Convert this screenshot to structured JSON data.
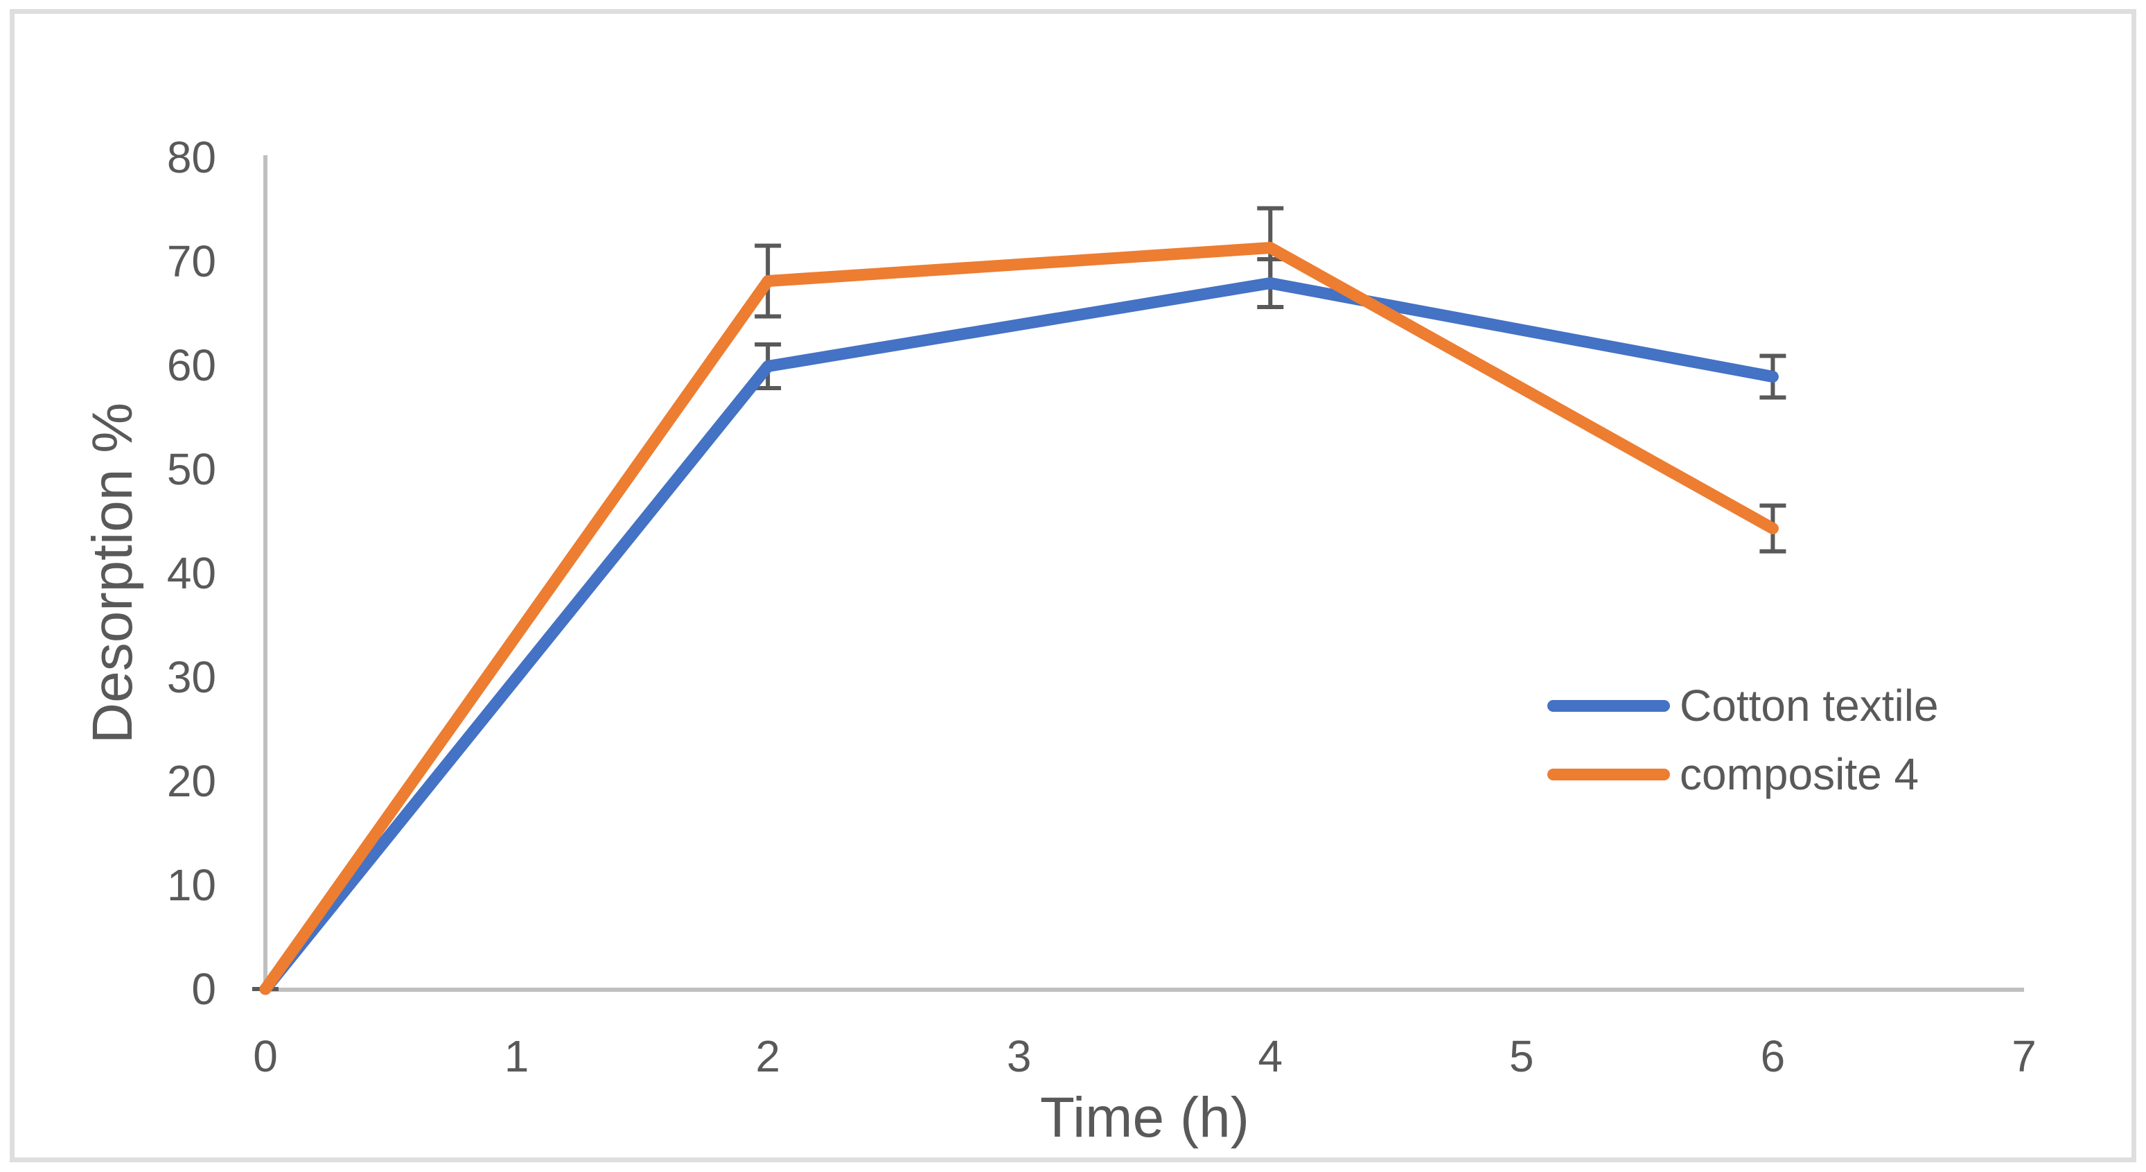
{
  "figure": {
    "background": "#ffffff",
    "frame_border_color": "#dedede"
  },
  "chart_data": {
    "type": "line",
    "x": [
      0,
      2,
      4,
      6
    ],
    "series": [
      {
        "name": "Cotton textile",
        "color": "#4472C4",
        "values": [
          0,
          59.9,
          67.9,
          58.9
        ],
        "error": [
          0,
          2.1,
          2.3,
          2.0
        ]
      },
      {
        "name": "composite 4",
        "color": "#ED7D31",
        "values": [
          0,
          68.1,
          71.3,
          44.3
        ],
        "error": [
          0,
          3.4,
          3.8,
          2.2
        ]
      }
    ],
    "title": "",
    "xlabel": "Time (h)",
    "ylabel": "Desorption %",
    "xlim": [
      0,
      7
    ],
    "ylim": [
      0,
      80
    ],
    "x_ticks": [
      0,
      1,
      2,
      3,
      4,
      5,
      6,
      7
    ],
    "y_ticks": [
      0,
      10,
      20,
      30,
      40,
      50,
      60,
      70,
      80
    ],
    "grid": false,
    "legend_position": "middle-right",
    "axis_color": "#BFBFBF",
    "error_bar_color": "#595959",
    "text_color": "#595959"
  }
}
